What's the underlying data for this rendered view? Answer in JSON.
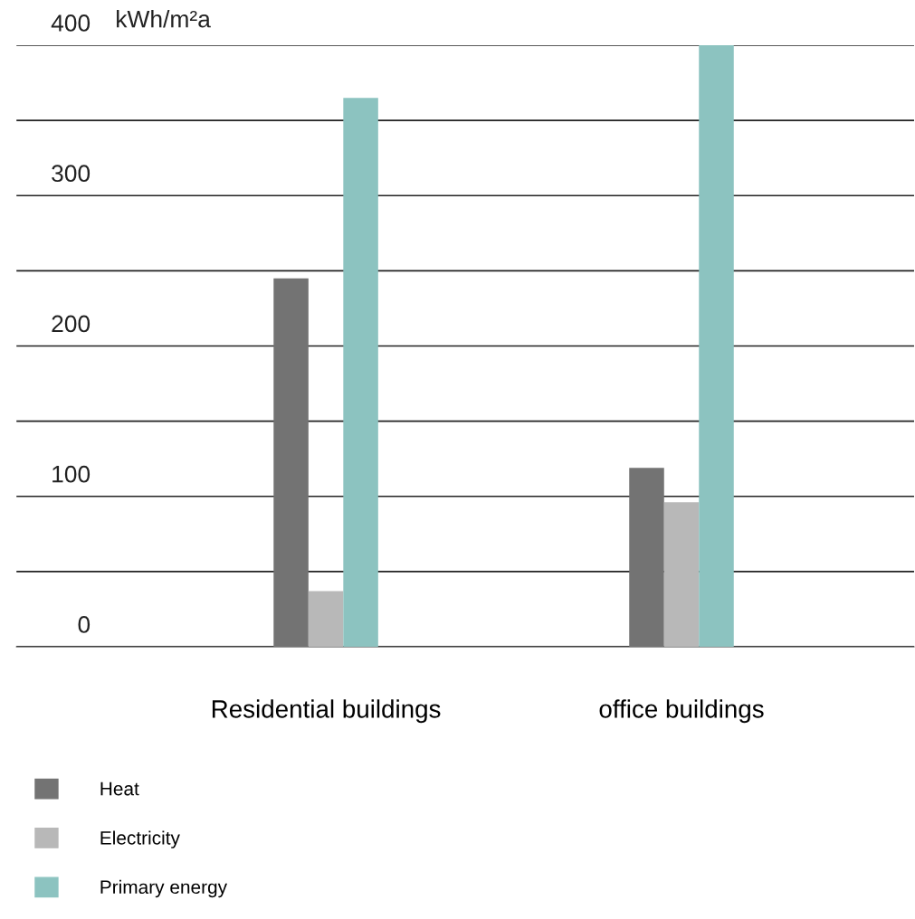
{
  "chart_data": {
    "type": "bar",
    "ylabel": "kWh/m²a",
    "categories": [
      "Residential buildings",
      "office buildings"
    ],
    "series": [
      {
        "name": "Heat",
        "color": "#737373",
        "values": [
          245,
          119
        ]
      },
      {
        "name": "Electricity",
        "color": "#b8b8b8",
        "values": [
          37,
          96
        ]
      },
      {
        "name": "Primary energy",
        "color": "#8cc3c0",
        "values": [
          365,
          400
        ]
      }
    ],
    "ylim": [
      0,
      400
    ],
    "yticks": [
      0,
      {
        "value": 50,
        "label": null
      },
      100,
      {
        "value": 150,
        "label": null
      },
      200,
      {
        "value": 250,
        "label": null
      },
      300,
      {
        "value": 350,
        "label": null
      },
      400
    ],
    "grid": "y",
    "legend": "bottom left"
  }
}
